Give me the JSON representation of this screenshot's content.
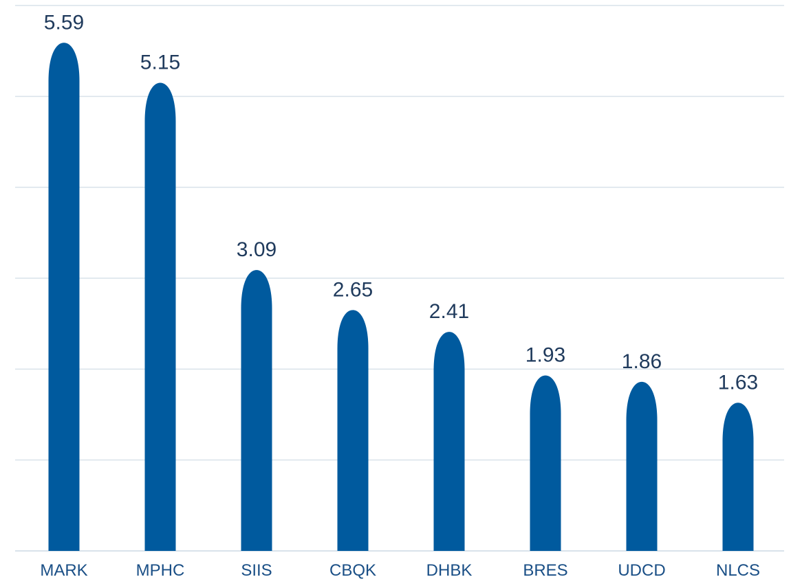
{
  "chart_data": {
    "type": "bar",
    "categories": [
      "MARK",
      "MPHC",
      "SIIS",
      "CBQK",
      "DHBK",
      "BRES",
      "UDCD",
      "NLCS"
    ],
    "values": [
      5.59,
      5.15,
      3.09,
      2.65,
      2.41,
      1.93,
      1.86,
      1.63
    ],
    "value_labels": [
      "5.59",
      "5.15",
      "3.09",
      "2.65",
      "2.41",
      "1.93",
      "1.86",
      "1.63"
    ],
    "ylim": [
      0,
      6
    ],
    "grid": true,
    "bar_color": "#005A9E",
    "bar_shape": "rounded-top",
    "gridline_color": "#D9E2EA",
    "label_color": "#1F3A5C",
    "tick_color": "#1A4F86"
  }
}
